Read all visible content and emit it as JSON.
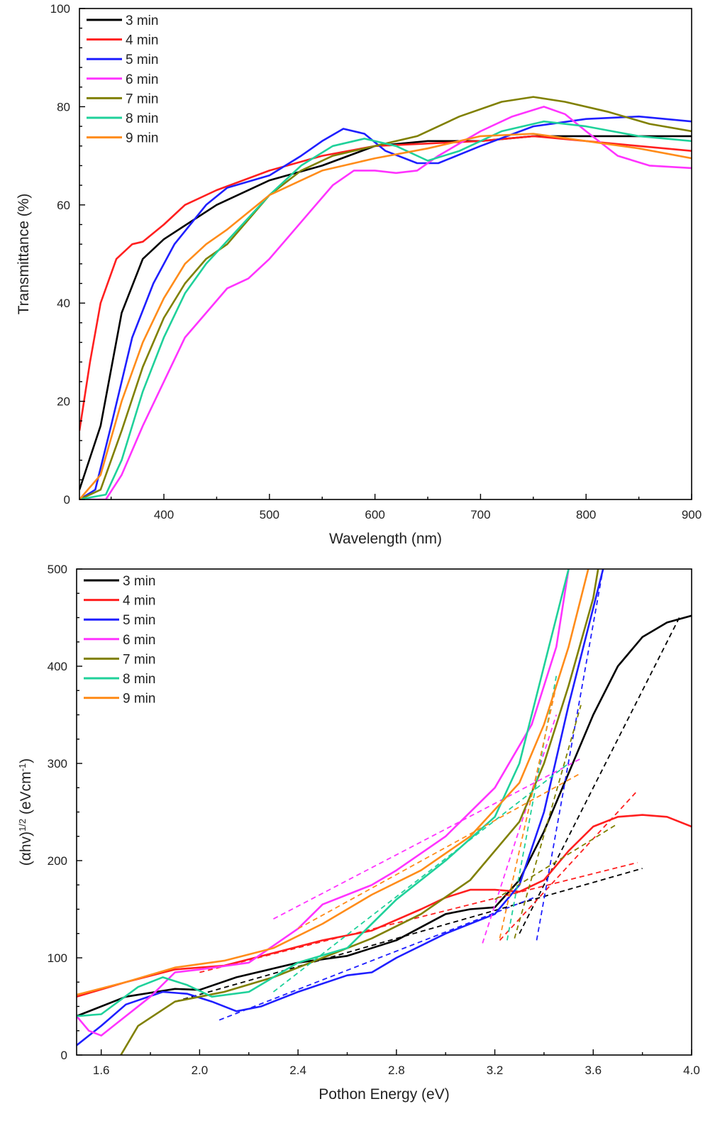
{
  "colors": {
    "3 min": "#000000",
    "4 min": "#ff1f1f",
    "5 min": "#1f1fff",
    "6 min": "#ff33ff",
    "7 min": "#808000",
    "8 min": "#1fd19a",
    "9 min": "#ff8c1a"
  },
  "chart_data": [
    {
      "type": "line",
      "xlabel": "Wavelength (nm)",
      "ylabel": "Transmittance (%)",
      "xlim": [
        320,
        900
      ],
      "ylim": [
        0,
        100
      ],
      "xticks": [
        400,
        500,
        600,
        700,
        800,
        900
      ],
      "yticks": [
        0,
        20,
        40,
        60,
        80,
        100
      ],
      "legend": "top-left",
      "grid": false,
      "series": [
        {
          "name": "3 min",
          "x": [
            320,
            340,
            360,
            380,
            400,
            450,
            500,
            550,
            600,
            650,
            700,
            750,
            800,
            850,
            900
          ],
          "y": [
            2,
            15,
            38,
            49,
            53,
            60,
            65,
            68,
            72,
            73,
            73,
            74,
            74,
            74,
            74
          ]
        },
        {
          "name": "4 min",
          "x": [
            320,
            330,
            340,
            355,
            370,
            380,
            400,
            420,
            450,
            500,
            550,
            600,
            650,
            700,
            750,
            800,
            850,
            900
          ],
          "y": [
            14,
            28,
            40,
            49,
            52,
            52.5,
            56,
            60,
            63,
            67,
            70,
            72,
            72.5,
            73,
            74,
            73,
            72,
            71
          ]
        },
        {
          "name": "5 min",
          "x": [
            320,
            335,
            350,
            370,
            390,
            410,
            440,
            460,
            500,
            530,
            550,
            570,
            590,
            610,
            640,
            660,
            700,
            750,
            800,
            850,
            900
          ],
          "y": [
            0,
            2,
            15,
            33,
            44,
            52,
            60,
            63.5,
            66,
            70,
            73,
            75.5,
            74.5,
            71,
            68.5,
            68.5,
            72,
            76,
            77.5,
            78,
            77
          ]
        },
        {
          "name": "6 min",
          "x": [
            320,
            345,
            360,
            380,
            400,
            420,
            440,
            460,
            480,
            500,
            520,
            540,
            560,
            580,
            600,
            620,
            640,
            660,
            700,
            730,
            760,
            780,
            800,
            830,
            860,
            900
          ],
          "y": [
            0,
            0,
            5,
            15,
            24,
            33,
            38,
            43,
            45,
            49,
            54,
            59,
            64,
            67,
            67,
            66.5,
            67,
            70,
            75,
            78,
            80,
            78.5,
            75,
            70,
            68,
            67.5
          ]
        },
        {
          "name": "7 min",
          "x": [
            320,
            340,
            360,
            380,
            400,
            420,
            440,
            460,
            480,
            500,
            530,
            560,
            600,
            640,
            680,
            720,
            750,
            780,
            820,
            860,
            900
          ],
          "y": [
            0,
            2,
            14,
            27,
            37,
            44,
            49,
            52,
            57,
            62,
            67,
            70,
            72,
            74,
            78,
            81,
            82,
            81,
            79,
            76.5,
            75
          ]
        },
        {
          "name": "8 min",
          "x": [
            320,
            345,
            360,
            380,
            400,
            420,
            440,
            470,
            500,
            530,
            560,
            590,
            620,
            650,
            680,
            720,
            760,
            800,
            850,
            900
          ],
          "y": [
            0,
            1,
            8,
            22,
            33,
            42,
            48,
            55,
            62,
            68,
            72,
            73.5,
            72,
            69,
            71,
            75,
            77,
            76,
            74,
            73
          ]
        },
        {
          "name": "9 min",
          "x": [
            320,
            340,
            360,
            380,
            400,
            420,
            440,
            460,
            500,
            550,
            600,
            650,
            700,
            750,
            800,
            850,
            900
          ],
          "y": [
            0,
            5,
            20,
            32,
            41,
            48,
            52,
            55,
            62,
            67,
            69.5,
            71.5,
            74,
            74.5,
            73,
            71.5,
            69.5
          ]
        }
      ]
    },
    {
      "type": "line",
      "xlabel": "Pothon Energy (eV)",
      "ylabel": {
        "base": "(αhv)",
        "sup1": "1/2",
        "mid": " (eVcm",
        "sup2": "-1",
        "end": ")"
      },
      "xlim": [
        1.5,
        4.0
      ],
      "ylim": [
        0,
        500
      ],
      "xticks": [
        1.6,
        2.0,
        2.4,
        2.8,
        3.2,
        3.6,
        4.0
      ],
      "yticks": [
        0,
        100,
        200,
        300,
        400,
        500
      ],
      "legend": "top-left",
      "grid": false,
      "series": [
        {
          "name": "3 min",
          "x": [
            1.5,
            1.7,
            1.9,
            2.0,
            2.15,
            2.4,
            2.6,
            2.8,
            3.0,
            3.1,
            3.2,
            3.3,
            3.4,
            3.5,
            3.6,
            3.7,
            3.8,
            3.9,
            4.0
          ],
          "y": [
            40,
            60,
            68,
            67,
            80,
            95,
            102,
            118,
            145,
            150,
            152,
            180,
            230,
            290,
            350,
            400,
            430,
            445,
            452
          ],
          "fits": [
            [
              [
                1.9,
                55
              ],
              [
                3.8,
                192
              ]
            ],
            [
              [
                3.3,
                125
              ],
              [
                3.95,
                450
              ]
            ]
          ]
        },
        {
          "name": "4 min",
          "x": [
            1.5,
            1.7,
            1.9,
            2.1,
            2.3,
            2.5,
            2.7,
            2.9,
            3.0,
            3.1,
            3.2,
            3.3,
            3.4,
            3.5,
            3.6,
            3.7,
            3.8,
            3.9,
            4.0
          ],
          "y": [
            60,
            75,
            88,
            92,
            105,
            118,
            128,
            150,
            162,
            170,
            170,
            168,
            180,
            210,
            235,
            245,
            247,
            245,
            235
          ],
          "fits": [
            [
              [
                2.0,
                85
              ],
              [
                3.78,
                198
              ]
            ],
            [
              [
                3.22,
                118
              ],
              [
                3.78,
                272
              ]
            ]
          ]
        },
        {
          "name": "5 min",
          "x": [
            1.5,
            1.6,
            1.7,
            1.85,
            1.95,
            2.05,
            2.15,
            2.25,
            2.4,
            2.6,
            2.7,
            2.8,
            3.0,
            3.2,
            3.3,
            3.4,
            3.5,
            3.6,
            3.64
          ],
          "y": [
            10,
            30,
            52,
            65,
            63,
            55,
            45,
            50,
            65,
            82,
            85,
            100,
            125,
            145,
            175,
            250,
            360,
            460,
            500
          ],
          "fits": [
            [
              [
                2.08,
                36
              ],
              [
                3.37,
                163
              ]
            ],
            [
              [
                3.37,
                118
              ],
              [
                3.64,
                500
              ]
            ]
          ]
        },
        {
          "name": "6 min",
          "x": [
            1.5,
            1.55,
            1.6,
            1.65,
            1.8,
            1.9,
            2.0,
            2.2,
            2.4,
            2.5,
            2.7,
            2.8,
            3.0,
            3.2,
            3.35,
            3.45,
            3.5
          ],
          "y": [
            40,
            25,
            20,
            30,
            60,
            85,
            88,
            95,
            130,
            155,
            175,
            190,
            225,
            275,
            340,
            420,
            500
          ],
          "fits": [
            [
              [
                2.3,
                140
              ],
              [
                3.55,
                305
              ]
            ],
            [
              [
                3.15,
                115
              ],
              [
                3.45,
                350
              ]
            ]
          ]
        },
        {
          "name": "7 min",
          "x": [
            1.68,
            1.75,
            1.9,
            2.1,
            2.3,
            2.5,
            2.7,
            2.9,
            3.1,
            3.3,
            3.4,
            3.5,
            3.6,
            3.62
          ],
          "y": [
            0,
            30,
            55,
            65,
            80,
            100,
            120,
            145,
            180,
            240,
            300,
            380,
            470,
            500
          ],
          "fits": [
            [
              [
                3.2,
                160
              ],
              [
                3.7,
                238
              ]
            ],
            [
              [
                3.28,
                120
              ],
              [
                3.55,
                360
              ]
            ]
          ]
        },
        {
          "name": "8 min",
          "x": [
            1.5,
            1.6,
            1.75,
            1.85,
            1.95,
            2.05,
            2.2,
            2.4,
            2.6,
            2.8,
            3.0,
            3.2,
            3.3,
            3.4,
            3.5
          ],
          "y": [
            40,
            42,
            70,
            80,
            72,
            60,
            65,
            95,
            110,
            160,
            200,
            245,
            300,
            400,
            500
          ],
          "fits": [
            [
              [
                2.3,
                65
              ],
              [
                3.5,
                300
              ]
            ],
            [
              [
                3.25,
                118
              ],
              [
                3.45,
                390
              ]
            ]
          ]
        },
        {
          "name": "9 min",
          "x": [
            1.5,
            1.7,
            1.9,
            2.1,
            2.3,
            2.5,
            2.7,
            2.9,
            3.1,
            3.3,
            3.4,
            3.5,
            3.58
          ],
          "y": [
            62,
            75,
            90,
            97,
            110,
            135,
            165,
            190,
            225,
            280,
            340,
            420,
            500
          ],
          "fits": [
            [
              [
                2.4,
                130
              ],
              [
                3.55,
                290
              ]
            ],
            [
              [
                3.22,
                120
              ],
              [
                3.45,
                380
              ]
            ]
          ]
        }
      ]
    }
  ]
}
